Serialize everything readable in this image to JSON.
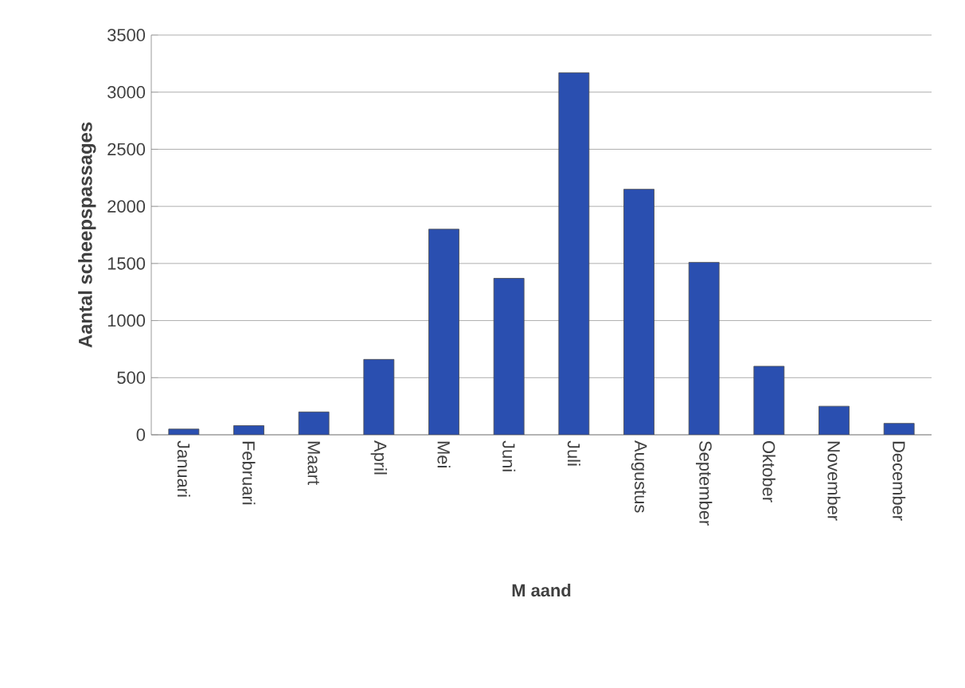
{
  "chart_data": {
    "type": "bar",
    "xlabel": "M aand",
    "ylabel": "Aantal scheepspassages",
    "categories": [
      "Januari",
      "Februari",
      "Maart",
      "April",
      "Mei",
      "Juni",
      "Juli",
      "Augustus",
      "September",
      "Oktober",
      "November",
      "December"
    ],
    "values": [
      50,
      80,
      200,
      660,
      1800,
      1370,
      3170,
      2150,
      1510,
      600,
      250,
      100
    ],
    "color": "#2a4fb0",
    "ylim": [
      0,
      3500
    ],
    "yticks": [
      0,
      500,
      1000,
      1500,
      2000,
      2500,
      3000,
      3500
    ],
    "grid": "y"
  }
}
